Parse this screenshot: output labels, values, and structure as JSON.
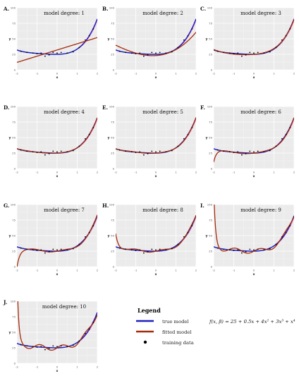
{
  "chart_data": [
    {
      "type": "line",
      "panel_label": "A.",
      "title": "model degree: 1",
      "xlabel": "x",
      "ylabel": "y",
      "xlim": [
        -2,
        2
      ],
      "ylim": [
        0,
        100
      ],
      "x_ticks": [
        "-2",
        "-1",
        "0",
        "1",
        "2"
      ],
      "y_ticks": [
        "0",
        "25",
        "50",
        "75",
        "100"
      ],
      "series": [
        {
          "values_at_x": [
            -2,
            -1,
            0,
            1,
            2
          ],
          "fitted_values": [
            12,
            22,
            32,
            42,
            52
          ]
        }
      ]
    },
    {
      "type": "line",
      "panel_label": "B.",
      "title": "model degree: 2",
      "xlabel": "x",
      "ylabel": "y",
      "xlim": [
        -2,
        2
      ],
      "ylim": [
        0,
        100
      ],
      "x_ticks": [
        "-2",
        "-1",
        "0",
        "1",
        "2"
      ],
      "y_ticks": [
        "0",
        "25",
        "50",
        "75",
        "100"
      ],
      "series": [
        {
          "values_at_x": [
            -2,
            -1,
            0,
            1,
            2
          ],
          "fitted_values": [
            45,
            28,
            23,
            33,
            70
          ]
        }
      ]
    },
    {
      "type": "line",
      "panel_label": "C.",
      "title": "model degree: 3",
      "xlabel": "x",
      "ylabel": "y",
      "xlim": [
        -2,
        2
      ],
      "ylim": [
        0,
        100
      ],
      "x_ticks": [
        "-2",
        "-1",
        "0",
        "1",
        "2"
      ],
      "y_ticks": [
        "0",
        "25",
        "50",
        "75",
        "100"
      ]
    },
    {
      "type": "line",
      "panel_label": "D.",
      "title": "model degree: 4",
      "xlabel": "x",
      "ylabel": "y",
      "xlim": [
        -2,
        2
      ],
      "ylim": [
        0,
        100
      ],
      "x_ticks": [
        "-2",
        "-1",
        "0",
        "1",
        "2"
      ],
      "y_ticks": [
        "0",
        "25",
        "50",
        "75",
        "100"
      ]
    },
    {
      "type": "line",
      "panel_label": "E.",
      "title": "model degree: 5",
      "xlabel": "x",
      "ylabel": "y",
      "xlim": [
        -2,
        2
      ],
      "ylim": [
        0,
        100
      ],
      "x_ticks": [
        "-2",
        "-1",
        "0",
        "1",
        "2"
      ],
      "y_ticks": [
        "0",
        "25",
        "50",
        "75",
        "100"
      ]
    },
    {
      "type": "line",
      "panel_label": "F.",
      "title": "model degree: 6",
      "xlabel": "x",
      "ylabel": "y",
      "xlim": [
        -2,
        2
      ],
      "ylim": [
        0,
        100
      ],
      "x_ticks": [
        "-2",
        "-1",
        "0",
        "1",
        "2"
      ],
      "y_ticks": [
        "0",
        "25",
        "50",
        "75",
        "100"
      ]
    },
    {
      "type": "line",
      "panel_label": "G.",
      "title": "model degree: 7",
      "xlabel": "x",
      "ylabel": "y",
      "xlim": [
        -2,
        2
      ],
      "ylim": [
        0,
        100
      ],
      "x_ticks": [
        "-2",
        "-1",
        "0",
        "1",
        "2"
      ],
      "y_ticks": [
        "0",
        "25",
        "50",
        "75",
        "100"
      ]
    },
    {
      "type": "line",
      "panel_label": "H.",
      "title": "model degree: 8",
      "xlabel": "x",
      "ylabel": "y",
      "xlim": [
        -2,
        2
      ],
      "ylim": [
        0,
        100
      ],
      "x_ticks": [
        "-2",
        "-1",
        "0",
        "1",
        "2"
      ],
      "y_ticks": [
        "0",
        "25",
        "50",
        "75",
        "100"
      ]
    },
    {
      "type": "line",
      "panel_label": "I.",
      "title": "model degree: 9",
      "xlabel": "x",
      "ylabel": "y",
      "xlim": [
        -2,
        2
      ],
      "ylim": [
        0,
        100
      ],
      "x_ticks": [
        "-2",
        "-1",
        "0",
        "1",
        "2"
      ],
      "y_ticks": [
        "0",
        "25",
        "50",
        "75",
        "100"
      ]
    },
    {
      "type": "line",
      "panel_label": "J.",
      "title": "model degree: 10",
      "xlabel": "x",
      "ylabel": "y",
      "xlim": [
        -2,
        2
      ],
      "ylim": [
        0,
        100
      ],
      "x_ticks": [
        "-2",
        "-1",
        "0",
        "1",
        "2"
      ],
      "y_ticks": [
        "0",
        "25",
        "50",
        "75",
        "100"
      ]
    }
  ],
  "true_model": {
    "formula": "f(x, β) = 25 + 0.5x + 4x² + 3x³ + x⁴",
    "coefficients": [
      25,
      0.5,
      4,
      3,
      1
    ]
  },
  "training_data": {
    "x": [
      -1.8,
      -1.5,
      -1.2,
      -1.0,
      -0.8,
      -0.6,
      -0.4,
      -0.2,
      0.0,
      0.2,
      0.5,
      0.8,
      1.1,
      1.4,
      1.6,
      1.8
    ],
    "y": [
      30,
      28,
      27,
      26,
      27,
      22,
      24,
      28,
      27,
      28,
      27,
      29,
      36,
      48,
      55,
      66
    ]
  },
  "legend": {
    "title": "Legend",
    "items": [
      {
        "label": "true model",
        "color": "#1f1fbf",
        "kind": "line"
      },
      {
        "label": "fitted model",
        "color": "#a52a0a",
        "kind": "line"
      },
      {
        "label": "training data",
        "color": "#000000",
        "kind": "point"
      }
    ]
  },
  "colors": {
    "panel_bg": "#ebebeb",
    "grid": "#ffffff",
    "true_line": "#1f1fbf",
    "fit_line": "#a52a0a",
    "highlight": "#ff7fb4"
  }
}
